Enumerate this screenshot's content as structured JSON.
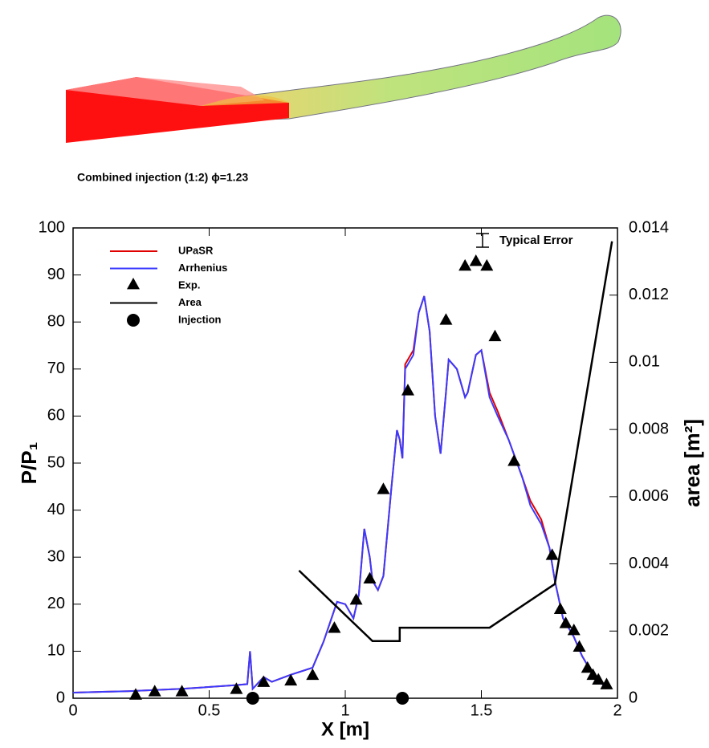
{
  "caption": "Combined injection (1:2) ϕ=1.23",
  "chart_data": {
    "type": "line",
    "xlabel": "X [m]",
    "ylabel": "P/P₁",
    "y2label": "area [m²]",
    "annotation": "Typical Error",
    "xlim": [
      0,
      2
    ],
    "xticks": [
      0,
      0.5,
      1,
      1.5,
      2
    ],
    "ylim": [
      0,
      100
    ],
    "yticks": [
      0,
      10,
      20,
      30,
      40,
      50,
      60,
      70,
      80,
      90,
      100
    ],
    "y2lim": [
      0,
      0.014
    ],
    "y2ticks": [
      0,
      0.002,
      0.004,
      0.006,
      0.008,
      0.01,
      0.012,
      0.014
    ],
    "legend": "upper left",
    "series": [
      {
        "name": "UPaSR",
        "color": "#e00000",
        "x": [
          0,
          0.2,
          0.4,
          0.6,
          0.64,
          0.65,
          0.66,
          0.7,
          0.73,
          0.8,
          0.88,
          0.92,
          0.97,
          1.0,
          1.03,
          1.05,
          1.07,
          1.09,
          1.1,
          1.12,
          1.14,
          1.17,
          1.19,
          1.2,
          1.21,
          1.22,
          1.25,
          1.27,
          1.29,
          1.31,
          1.33,
          1.35,
          1.37,
          1.38,
          1.41,
          1.44,
          1.45,
          1.48,
          1.5,
          1.53,
          1.56,
          1.6,
          1.65,
          1.68,
          1.72,
          1.75,
          1.77,
          1.8,
          1.84,
          1.87,
          1.9,
          1.93,
          1.96
        ],
        "values": [
          1.2,
          1.5,
          2,
          2.8,
          3,
          10,
          2,
          4.5,
          3.5,
          5,
          6.5,
          12,
          20.5,
          20,
          17,
          22,
          36,
          30,
          25,
          23,
          26,
          45,
          57,
          55,
          51,
          71,
          74,
          82,
          85.5,
          78,
          60,
          52,
          65,
          72,
          70,
          64,
          65,
          73,
          74,
          65,
          61,
          55,
          47,
          42,
          38,
          32,
          25,
          17,
          13,
          9,
          6,
          4,
          2
        ]
      },
      {
        "name": "Arrhenius",
        "color": "#3a3aff",
        "x": [
          0,
          0.2,
          0.4,
          0.6,
          0.64,
          0.65,
          0.66,
          0.7,
          0.73,
          0.8,
          0.88,
          0.92,
          0.97,
          1.0,
          1.03,
          1.05,
          1.07,
          1.09,
          1.1,
          1.12,
          1.14,
          1.17,
          1.19,
          1.2,
          1.21,
          1.22,
          1.25,
          1.27,
          1.29,
          1.31,
          1.33,
          1.35,
          1.37,
          1.38,
          1.41,
          1.44,
          1.45,
          1.48,
          1.5,
          1.53,
          1.56,
          1.6,
          1.65,
          1.68,
          1.72,
          1.75,
          1.77,
          1.8,
          1.84,
          1.87,
          1.9,
          1.93,
          1.96
        ],
        "values": [
          1.2,
          1.5,
          2,
          2.8,
          3,
          10,
          2,
          4.5,
          3.5,
          5,
          6.5,
          12,
          20.5,
          20,
          17,
          22,
          36,
          30,
          25,
          23,
          26,
          45,
          57,
          55,
          51,
          70,
          73,
          82,
          85.5,
          78,
          60,
          52,
          65,
          72,
          70,
          64,
          65,
          73,
          74,
          64,
          60,
          55,
          47,
          41,
          37,
          32,
          25,
          17,
          13,
          9,
          6,
          4,
          2
        ]
      },
      {
        "name": "Exp.",
        "color": "#000000",
        "marker": "triangle",
        "x": [
          0.23,
          0.3,
          0.4,
          0.6,
          0.7,
          0.8,
          0.88,
          0.96,
          1.04,
          1.09,
          1.14,
          1.23,
          1.37,
          1.44,
          1.48,
          1.52,
          1.55,
          1.62,
          1.76,
          1.79,
          1.81,
          1.84,
          1.86,
          1.89,
          1.91,
          1.93,
          1.96
        ],
        "values": [
          0.8,
          1.5,
          1.5,
          2,
          3.5,
          3.8,
          5,
          15,
          21,
          25.5,
          44.5,
          65.5,
          80.5,
          92,
          93,
          92,
          77,
          50.5,
          30.5,
          19,
          16,
          14.5,
          11,
          6.5,
          5,
          4,
          3
        ]
      },
      {
        "name": "Area",
        "color": "#000000",
        "axis": "y2",
        "x": [
          0.83,
          1.1,
          1.2,
          1.2,
          1.53,
          1.77,
          1.98
        ],
        "values": [
          0.0038,
          0.0017,
          0.0017,
          0.0021,
          0.0021,
          0.0034,
          0.0136
        ]
      },
      {
        "name": "Injection",
        "color": "#000000",
        "marker": "circle",
        "x": [
          0.66,
          1.21
        ],
        "values": [
          0,
          0
        ]
      }
    ]
  }
}
